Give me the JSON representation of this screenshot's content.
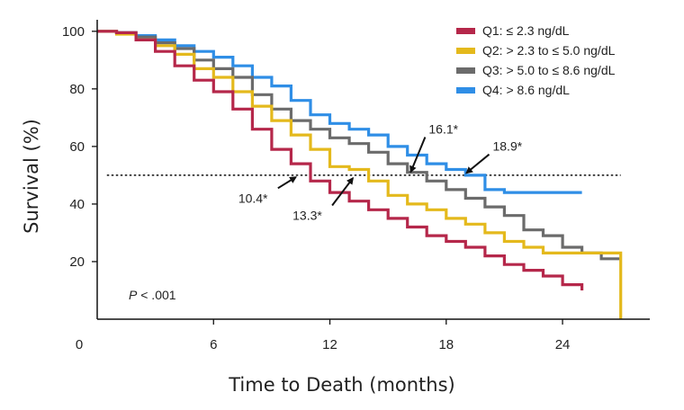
{
  "chart_data": {
    "type": "line",
    "subtype": "kaplan-meier survival curve",
    "ylabel": "Survival (%)",
    "xlabel": "Time to Death (months)",
    "xlim": [
      0,
      28.5
    ],
    "ylim": [
      0,
      104
    ],
    "x_ticks": [
      0,
      6,
      12,
      18,
      24
    ],
    "y_ticks": [
      20,
      40,
      60,
      80,
      100
    ],
    "reference_line": {
      "y": 50,
      "style": "dotted",
      "x_range": [
        0.5,
        27
      ]
    },
    "p_value_prefix": "P",
    "p_value_rest": " < .001",
    "series": [
      {
        "name": "Q1: ≤ 2.3 ng/dL",
        "color": "#b5274a",
        "points": [
          [
            0,
            100
          ],
          [
            1,
            99.5
          ],
          [
            2,
            97
          ],
          [
            3,
            93
          ],
          [
            4,
            88
          ],
          [
            5,
            83
          ],
          [
            6,
            79
          ],
          [
            7,
            73
          ],
          [
            8,
            66
          ],
          [
            9,
            59
          ],
          [
            10,
            54
          ],
          [
            11,
            48
          ],
          [
            12,
            44
          ],
          [
            13,
            41
          ],
          [
            14,
            38
          ],
          [
            15,
            35
          ],
          [
            16,
            32
          ],
          [
            17,
            29
          ],
          [
            18,
            27
          ],
          [
            19,
            25
          ],
          [
            20,
            22
          ],
          [
            21,
            19
          ],
          [
            22,
            17
          ],
          [
            23,
            15
          ],
          [
            24,
            12
          ],
          [
            25,
            10
          ]
        ]
      },
      {
        "name": "Q2: > 2.3 to ≤ 5.0 ng/dL",
        "color": "#e4b91c",
        "points": [
          [
            0,
            100
          ],
          [
            1,
            99
          ],
          [
            2,
            97
          ],
          [
            3,
            95
          ],
          [
            4,
            92
          ],
          [
            5,
            87
          ],
          [
            6,
            84
          ],
          [
            7,
            79
          ],
          [
            8,
            74
          ],
          [
            9,
            69
          ],
          [
            10,
            64
          ],
          [
            11,
            59
          ],
          [
            12,
            53
          ],
          [
            13,
            52
          ],
          [
            14,
            48
          ],
          [
            15,
            43
          ],
          [
            16,
            40
          ],
          [
            17,
            38
          ],
          [
            18,
            35
          ],
          [
            19,
            33
          ],
          [
            20,
            30
          ],
          [
            21,
            27
          ],
          [
            22,
            25
          ],
          [
            23,
            23
          ],
          [
            24,
            23
          ],
          [
            25,
            23
          ],
          [
            26,
            23
          ],
          [
            27,
            23
          ],
          [
            27,
            0
          ]
        ]
      },
      {
        "name": "Q3: > 5.0 to ≤ 8.6 ng/dL",
        "color": "#6b6b6b",
        "points": [
          [
            0,
            100
          ],
          [
            1,
            99.5
          ],
          [
            2,
            98
          ],
          [
            3,
            96
          ],
          [
            4,
            94
          ],
          [
            5,
            90
          ],
          [
            6,
            87
          ],
          [
            7,
            84
          ],
          [
            8,
            78
          ],
          [
            9,
            73
          ],
          [
            10,
            69
          ],
          [
            11,
            66
          ],
          [
            12,
            63
          ],
          [
            13,
            61
          ],
          [
            14,
            58
          ],
          [
            15,
            54
          ],
          [
            16,
            51
          ],
          [
            17,
            48
          ],
          [
            18,
            45
          ],
          [
            19,
            42
          ],
          [
            20,
            39
          ],
          [
            21,
            36
          ],
          [
            22,
            31
          ],
          [
            23,
            29
          ],
          [
            24,
            25
          ],
          [
            25,
            23
          ],
          [
            26,
            21
          ],
          [
            27,
            21
          ]
        ]
      },
      {
        "name": "Q4: > 8.6 ng/dL",
        "color": "#2f8ee6",
        "points": [
          [
            0,
            100
          ],
          [
            1,
            99.5
          ],
          [
            2,
            98.5
          ],
          [
            3,
            97
          ],
          [
            4,
            95
          ],
          [
            5,
            93
          ],
          [
            6,
            91
          ],
          [
            7,
            88
          ],
          [
            8,
            84
          ],
          [
            9,
            81
          ],
          [
            10,
            76
          ],
          [
            11,
            71
          ],
          [
            12,
            68
          ],
          [
            13,
            66
          ],
          [
            14,
            64
          ],
          [
            15,
            60
          ],
          [
            16,
            57
          ],
          [
            17,
            54
          ],
          [
            18,
            52
          ],
          [
            19,
            50
          ],
          [
            20,
            45
          ],
          [
            21,
            44
          ],
          [
            22,
            44
          ],
          [
            23,
            44
          ],
          [
            24,
            44
          ],
          [
            25,
            44
          ]
        ]
      }
    ],
    "annotations": [
      {
        "label": "10.4*",
        "x": 10.4,
        "y": 50,
        "text_pos": [
          8.3,
          40.5
        ]
      },
      {
        "label": "13.3*",
        "x": 13.3,
        "y": 50,
        "text_pos": [
          11.1,
          34.5
        ]
      },
      {
        "label": "16.1*",
        "x": 16.1,
        "y": 50,
        "text_pos": [
          17.1,
          64.5
        ]
      },
      {
        "label": "18.9*",
        "x": 18.9,
        "y": 50,
        "text_pos": [
          20.4,
          58.5
        ]
      }
    ]
  }
}
